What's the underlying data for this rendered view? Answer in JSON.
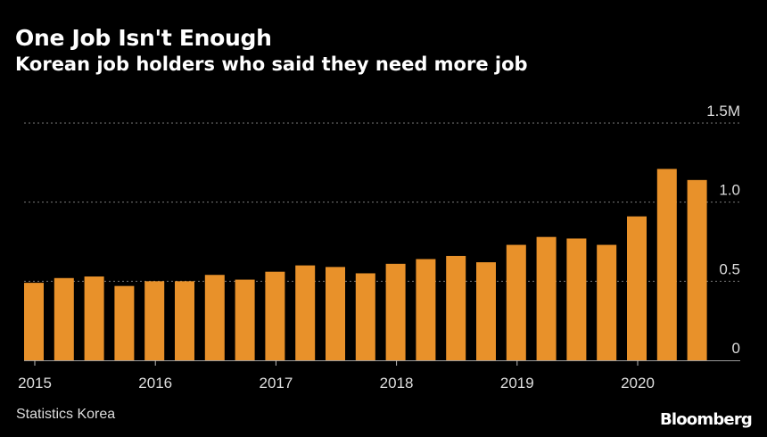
{
  "header": {
    "title": "One Job Isn't Enough",
    "subtitle": "Korean job holders who said they need more job"
  },
  "footer": {
    "source": "Statistics Korea",
    "brand": "Bloomberg"
  },
  "colors": {
    "background": "#000000",
    "bar": "#e8912a",
    "grid": "#7a7a7a",
    "text": "#ffffff"
  },
  "chart_data": {
    "type": "bar",
    "title": "One Job Isn't Enough",
    "subtitle": "Korean job holders who said they need more job",
    "x_tick_labels": [
      "2015",
      "2016",
      "2017",
      "2018",
      "2019",
      "2020"
    ],
    "y_tick_labels": [
      "0",
      "0.5",
      "1.0",
      "1.5M"
    ],
    "y_ticks": [
      0,
      0.5,
      1.0,
      1.5
    ],
    "ylim": [
      0,
      1.5
    ],
    "grid": true,
    "grid_style": "dotted",
    "y_axis_side": "right",
    "categories": [
      "2015 Q1",
      "2015 Q2",
      "2015 Q3",
      "2015 Q4",
      "2016 Q1",
      "2016 Q2",
      "2016 Q3",
      "2016 Q4",
      "2017 Q1",
      "2017 Q2",
      "2017 Q3",
      "2017 Q4",
      "2018 Q1",
      "2018 Q2",
      "2018 Q3",
      "2018 Q4",
      "2019 Q1",
      "2019 Q2",
      "2019 Q3",
      "2019 Q4",
      "2020 Q1",
      "2020 Q2",
      "2020 Q3"
    ],
    "values": [
      0.49,
      0.52,
      0.53,
      0.47,
      0.5,
      0.5,
      0.54,
      0.51,
      0.56,
      0.6,
      0.59,
      0.55,
      0.61,
      0.64,
      0.66,
      0.62,
      0.73,
      0.78,
      0.77,
      0.73,
      0.91,
      1.21,
      1.14
    ]
  }
}
